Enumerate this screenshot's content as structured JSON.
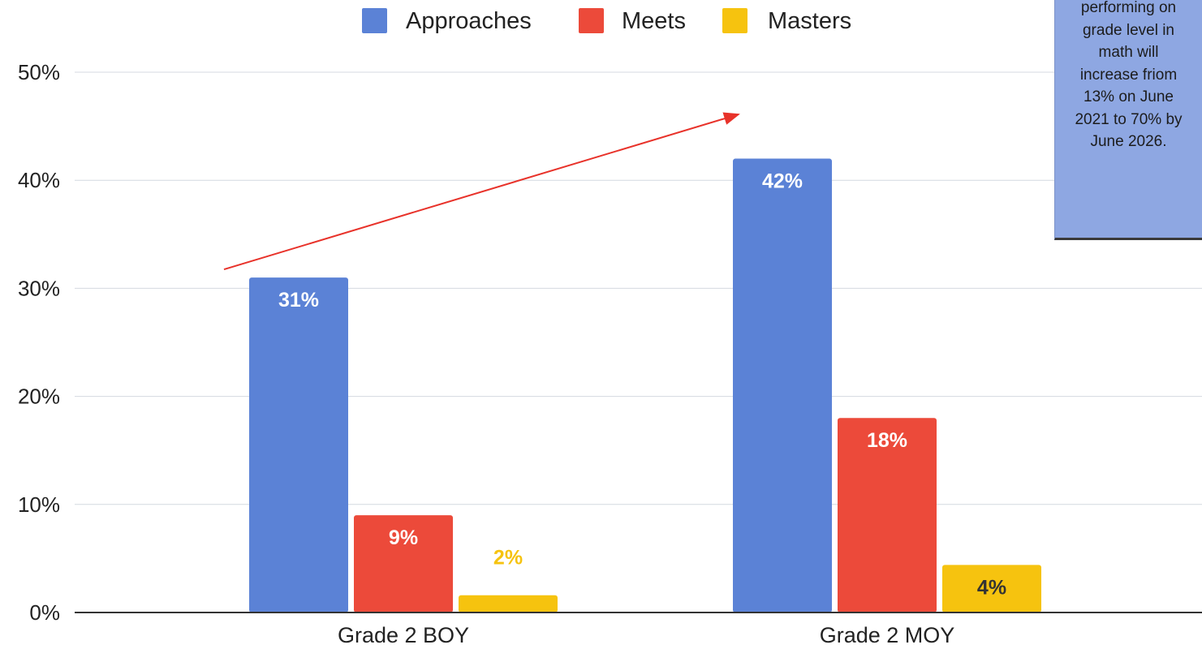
{
  "chart_data": {
    "type": "bar",
    "categories": [
      "Grade 2 BOY",
      "Grade 2 MOY"
    ],
    "series": [
      {
        "name": "Approaches",
        "values": [
          31,
          42
        ],
        "labels": [
          "31%",
          "42%"
        ],
        "color": "#5b82d6",
        "label_color": "#ffffff",
        "label_position": "inside"
      },
      {
        "name": "Meets",
        "values": [
          9,
          18
        ],
        "labels": [
          "9%",
          "18%"
        ],
        "color": "#ec4a3a",
        "label_color": "#ffffff",
        "label_position": "inside"
      },
      {
        "name": "Masters",
        "values": [
          1.6,
          4.4
        ],
        "labels": [
          "2%",
          "4%"
        ],
        "color": "#f6c30f",
        "label_colors": [
          "#f6c30f",
          "#333333"
        ],
        "label_positions": [
          "above",
          "inside"
        ]
      }
    ],
    "y_ticks": [
      "0%",
      "10%",
      "20%",
      "30%",
      "40%",
      "50%"
    ],
    "ylim": [
      0,
      50
    ],
    "grid": true,
    "legend": "top-center",
    "annotation": {
      "type": "arrow",
      "color": "#e8322a",
      "from": {
        "category": "Grade 2 BOY",
        "value": 31
      },
      "to": {
        "category": "Grade 2 MOY",
        "value": 45.5
      }
    }
  },
  "note": {
    "lines": [
      "performing on",
      "grade level in",
      "math will",
      "increase friom",
      "13% on June",
      "2021 to 70% by",
      "June 2026."
    ],
    "background": "#8ea7e2"
  }
}
